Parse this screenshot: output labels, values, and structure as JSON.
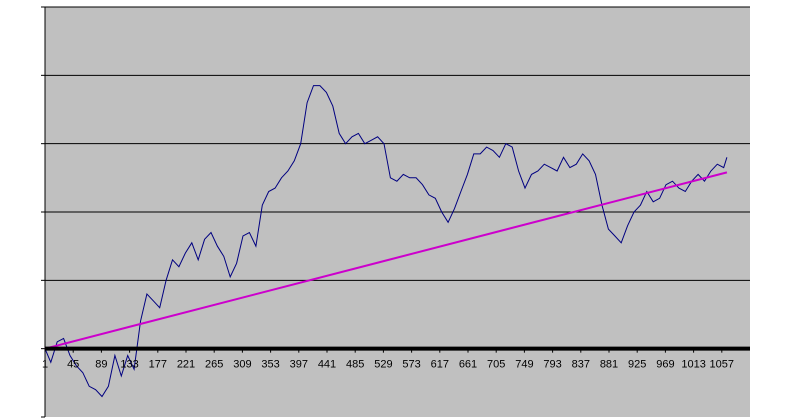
{
  "chart_data": {
    "type": "line",
    "title": "",
    "xlabel": "",
    "ylabel": "",
    "x_ticks": [
      "1",
      "45",
      "89",
      "133",
      "177",
      "221",
      "265",
      "309",
      "353",
      "397",
      "441",
      "485",
      "529",
      "573",
      "617",
      "661",
      "705",
      "749",
      "793",
      "837",
      "881",
      "925",
      "969",
      "1013",
      "1057"
    ],
    "xlim": [
      1,
      1101
    ],
    "ylim": [
      -1,
      5
    ],
    "y_tick_labels_shown": false,
    "grid": "horizontal",
    "legend": "none",
    "baseline_y": 0,
    "colors": {
      "plot_background": "#c0c0c0",
      "series_line": "#000080",
      "trend_line": "#cc00cc",
      "gridline": "#000000",
      "baseline": "#000000"
    },
    "series": [
      {
        "values": [
          [
            1,
            0.0
          ],
          [
            10,
            -0.2
          ],
          [
            20,
            0.1
          ],
          [
            30,
            0.15
          ],
          [
            40,
            -0.1
          ],
          [
            50,
            -0.25
          ],
          [
            60,
            -0.35
          ],
          [
            70,
            -0.55
          ],
          [
            80,
            -0.6
          ],
          [
            90,
            -0.7
          ],
          [
            100,
            -0.55
          ],
          [
            110,
            -0.1
          ],
          [
            120,
            -0.4
          ],
          [
            130,
            -0.1
          ],
          [
            140,
            -0.3
          ],
          [
            150,
            0.4
          ],
          [
            160,
            0.8
          ],
          [
            170,
            0.7
          ],
          [
            180,
            0.6
          ],
          [
            190,
            1.0
          ],
          [
            200,
            1.3
          ],
          [
            210,
            1.2
          ],
          [
            220,
            1.4
          ],
          [
            230,
            1.55
          ],
          [
            240,
            1.3
          ],
          [
            250,
            1.6
          ],
          [
            260,
            1.7
          ],
          [
            270,
            1.5
          ],
          [
            280,
            1.35
          ],
          [
            290,
            1.05
          ],
          [
            300,
            1.25
          ],
          [
            310,
            1.65
          ],
          [
            320,
            1.7
          ],
          [
            330,
            1.5
          ],
          [
            340,
            2.1
          ],
          [
            350,
            2.3
          ],
          [
            360,
            2.35
          ],
          [
            370,
            2.5
          ],
          [
            380,
            2.6
          ],
          [
            390,
            2.75
          ],
          [
            400,
            3.0
          ],
          [
            410,
            3.6
          ],
          [
            420,
            3.85
          ],
          [
            430,
            3.85
          ],
          [
            440,
            3.75
          ],
          [
            450,
            3.55
          ],
          [
            460,
            3.15
          ],
          [
            470,
            3.0
          ],
          [
            480,
            3.1
          ],
          [
            490,
            3.15
          ],
          [
            500,
            3.0
          ],
          [
            510,
            3.05
          ],
          [
            520,
            3.1
          ],
          [
            530,
            3.0
          ],
          [
            540,
            2.5
          ],
          [
            550,
            2.45
          ],
          [
            560,
            2.55
          ],
          [
            570,
            2.5
          ],
          [
            580,
            2.5
          ],
          [
            590,
            2.4
          ],
          [
            600,
            2.25
          ],
          [
            610,
            2.2
          ],
          [
            620,
            2.0
          ],
          [
            630,
            1.85
          ],
          [
            640,
            2.05
          ],
          [
            650,
            2.3
          ],
          [
            660,
            2.55
          ],
          [
            670,
            2.85
          ],
          [
            680,
            2.85
          ],
          [
            690,
            2.95
          ],
          [
            700,
            2.9
          ],
          [
            710,
            2.8
          ],
          [
            720,
            3.0
          ],
          [
            730,
            2.95
          ],
          [
            740,
            2.6
          ],
          [
            750,
            2.35
          ],
          [
            760,
            2.55
          ],
          [
            770,
            2.6
          ],
          [
            780,
            2.7
          ],
          [
            790,
            2.65
          ],
          [
            800,
            2.6
          ],
          [
            810,
            2.8
          ],
          [
            820,
            2.65
          ],
          [
            830,
            2.7
          ],
          [
            840,
            2.85
          ],
          [
            850,
            2.75
          ],
          [
            860,
            2.55
          ],
          [
            870,
            2.1
          ],
          [
            880,
            1.75
          ],
          [
            890,
            1.65
          ],
          [
            900,
            1.55
          ],
          [
            910,
            1.8
          ],
          [
            920,
            2.0
          ],
          [
            930,
            2.1
          ],
          [
            940,
            2.3
          ],
          [
            950,
            2.15
          ],
          [
            960,
            2.2
          ],
          [
            970,
            2.4
          ],
          [
            980,
            2.45
          ],
          [
            990,
            2.35
          ],
          [
            1000,
            2.3
          ],
          [
            1010,
            2.45
          ],
          [
            1020,
            2.55
          ],
          [
            1030,
            2.45
          ],
          [
            1040,
            2.6
          ],
          [
            1050,
            2.7
          ],
          [
            1060,
            2.65
          ],
          [
            1065,
            2.8
          ]
        ]
      },
      {
        "type": "trend",
        "values": [
          [
            1,
            0.0
          ],
          [
            1065,
            2.58
          ]
        ]
      }
    ]
  }
}
